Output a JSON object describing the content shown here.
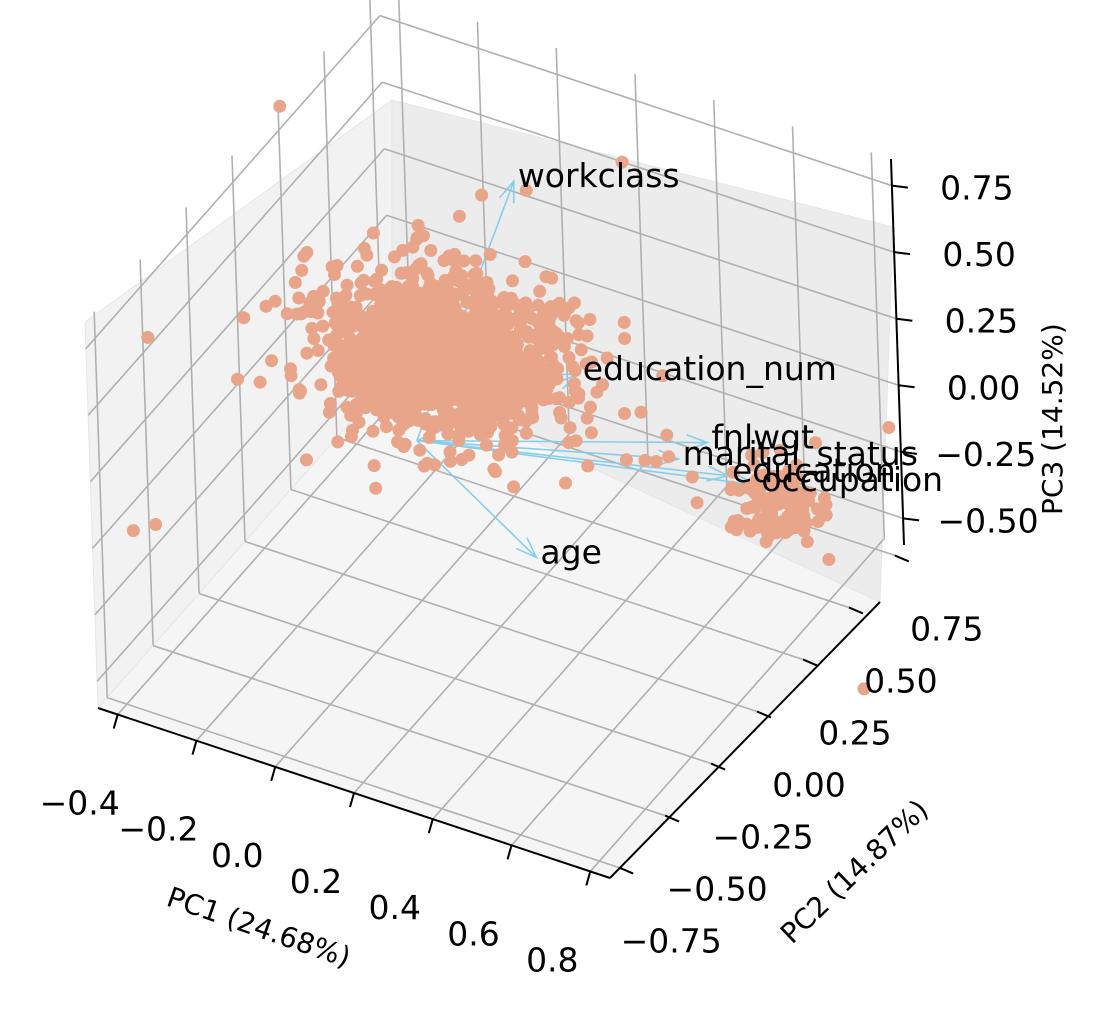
{
  "chart_data": {
    "type": "scatter",
    "projection": "3d",
    "xlabel": "PC1 (24.68%)",
    "ylabel": "PC2 (14.87%)",
    "zlabel": "PC3 (14.52%)",
    "x_ticks": [
      "−0.4",
      "−0.2",
      "0.0",
      "0.2",
      "0.4",
      "0.6",
      "0.8"
    ],
    "y_ticks": [
      "−0.75",
      "−0.50",
      "−0.25",
      "0.00",
      "0.25",
      "0.50",
      "0.75"
    ],
    "z_ticks": [
      "−0.50",
      "−0.25",
      "0.00",
      "0.25",
      "0.50",
      "0.75"
    ],
    "xlim": [
      -0.45,
      0.85
    ],
    "ylim": [
      -0.8,
      0.8
    ],
    "zlim": [
      -0.6,
      0.85
    ],
    "grid": true,
    "point_color": "#e8a58a",
    "arrow_color": "#87ceeb",
    "clusters": [
      {
        "name": "main",
        "center": [
          -0.1,
          0.35,
          0.0
        ],
        "n": 1400
      },
      {
        "name": "secondary",
        "center": [
          0.65,
          0.55,
          -0.35
        ],
        "n": 130
      }
    ],
    "loadings": [
      {
        "label": "workclass",
        "x": 0.1,
        "y": 0.35,
        "z": 0.75
      },
      {
        "label": "education_num",
        "x": 0.25,
        "y": 0.35,
        "z": 0.1
      },
      {
        "label": "fnlwgt",
        "x": 0.55,
        "y": 0.4,
        "z": -0.05
      },
      {
        "label": "education",
        "x": 0.6,
        "y": 0.4,
        "z": -0.15
      },
      {
        "label": "marital_status",
        "x": 0.45,
        "y": 0.45,
        "z": -0.2
      },
      {
        "label": "occupation",
        "x": 0.65,
        "y": 0.45,
        "z": -0.2
      },
      {
        "label": "age",
        "x": 0.15,
        "y": 0.3,
        "z": -0.6
      }
    ]
  }
}
